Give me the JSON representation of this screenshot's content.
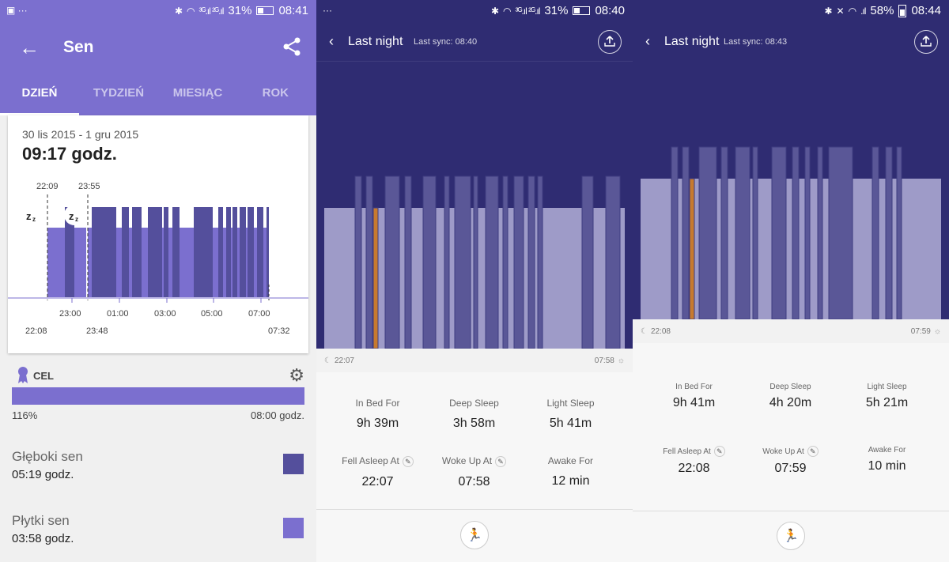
{
  "panel1": {
    "status": {
      "left_icons": "▣  ···",
      "signal": "³ᴳ.ıl ²ᴳ.ıl",
      "battery_pct": "31%",
      "time": "08:41",
      "battery_fill": 0.31
    },
    "header": {
      "back_icon": "←",
      "title": "Sen",
      "share_icon": "share-icon"
    },
    "tabs": [
      {
        "label": "DZIEŃ"
      },
      {
        "label": "TYDZIEŃ"
      },
      {
        "label": "MIESIĄC"
      },
      {
        "label": "ROK"
      }
    ],
    "card": {
      "date_range": "30 lis 2015 - 1 gru 2015",
      "total": "09:17 godz.",
      "markers": {
        "first": "22:09",
        "second": "23:55"
      },
      "axis_ticks": [
        "23:00",
        "01:00",
        "03:00",
        "05:00",
        "07:00"
      ],
      "start_time": "22:08",
      "second_start": "23:48",
      "end_time": "07:32"
    },
    "goal": {
      "label": "CEL",
      "percent": "116%",
      "target": "08:00 godz.",
      "progress": 1.16
    },
    "deep": {
      "name": "Głęboki sen",
      "value": "05:19 godz.",
      "color": "#544f9c"
    },
    "light": {
      "name": "Płytki sen",
      "value": "03:58 godz.",
      "color": "#7b6fcf"
    }
  },
  "panel2": {
    "status": {
      "left_icons": "···",
      "signal": "³ᴳ.ıl ²ᴳ.ıl",
      "battery_pct": "31%",
      "time": "08:40",
      "battery_fill": 0.31
    },
    "header": {
      "back_icon": "‹",
      "title": "Last night",
      "sync": "Last sync: 08:40"
    },
    "timeline": {
      "start": "22:07",
      "end": "07:58"
    },
    "stats": {
      "in_bed": {
        "label": "In Bed For",
        "value": "9h 39m"
      },
      "deep": {
        "label": "Deep Sleep",
        "value": "3h 58m"
      },
      "light": {
        "label": "Light Sleep",
        "value": "5h 41m"
      },
      "fell_asleep": {
        "label": "Fell Asleep At",
        "value": "22:07"
      },
      "woke_up": {
        "label": "Woke Up At",
        "value": "07:58"
      },
      "awake": {
        "label": "Awake For",
        "value": "12 min"
      }
    },
    "edit_icon": "✎",
    "run_icon": "🏃"
  },
  "panel3": {
    "status": {
      "signal": ".ıl",
      "battery_pct": "58%",
      "time": "08:44",
      "battery_fill": 0.58
    },
    "header": {
      "back_icon": "‹",
      "title": "Last night",
      "sync": "Last sync: 08:43"
    },
    "timeline": {
      "start": "22:08",
      "end": "07:59"
    },
    "stats": {
      "in_bed": {
        "label": "In Bed For",
        "value": "9h 41m"
      },
      "deep": {
        "label": "Deep Sleep",
        "value": "4h 20m"
      },
      "light": {
        "label": "Light Sleep",
        "value": "5h 21m"
      },
      "fell_asleep": {
        "label": "Fell Asleep At",
        "value": "22:08"
      },
      "woke_up": {
        "label": "Woke Up At",
        "value": "07:59"
      },
      "awake": {
        "label": "Awake For",
        "value": "10 min"
      }
    },
    "edit_icon": "✎",
    "run_icon": "🏃"
  },
  "colors": {
    "header_purple": "#7b6fcf",
    "night_navy": "#2f2c72",
    "light_sleep_bar": "#9e9bc8",
    "deep_sleep_bar": "#5a5797",
    "awake_bar": "#c77a2f"
  }
}
